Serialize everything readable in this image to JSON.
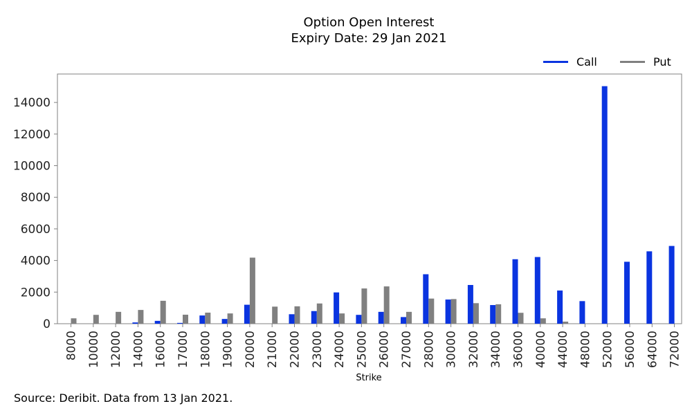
{
  "chart_data": {
    "type": "bar",
    "title": "Option Open Interest",
    "subtitle": "Expiry Date: 29 Jan 2021",
    "xlabel": "Strike",
    "ylabel": "",
    "ylim": [
      0,
      15800
    ],
    "yticks": [
      0,
      2000,
      4000,
      6000,
      8000,
      10000,
      12000,
      14000
    ],
    "grid": false,
    "legend_position": "top-right",
    "categories": [
      "8000",
      "10000",
      "12000",
      "14000",
      "16000",
      "17000",
      "18000",
      "19000",
      "20000",
      "21000",
      "22000",
      "23000",
      "24000",
      "25000",
      "26000",
      "27000",
      "28000",
      "30000",
      "32000",
      "34000",
      "36000",
      "40000",
      "44000",
      "48000",
      "52000",
      "56000",
      "64000",
      "72000"
    ],
    "series": [
      {
        "name": "Call",
        "color": "#0a34e0",
        "values": [
          0,
          0,
          0,
          80,
          180,
          50,
          520,
          300,
          1200,
          0,
          600,
          800,
          1980,
          560,
          750,
          420,
          3130,
          1530,
          2450,
          1180,
          4080,
          4220,
          2100,
          1430,
          15030,
          3920,
          4580,
          4920
        ]
      },
      {
        "name": "Put",
        "color": "#808080",
        "values": [
          340,
          560,
          750,
          870,
          1450,
          570,
          700,
          650,
          4180,
          1080,
          1100,
          1280,
          650,
          2230,
          2360,
          750,
          1590,
          1560,
          1300,
          1230,
          690,
          340,
          130,
          0,
          0,
          0,
          0,
          0
        ]
      }
    ]
  },
  "source_note": "Source: Deribit. Data from 13 Jan 2021."
}
